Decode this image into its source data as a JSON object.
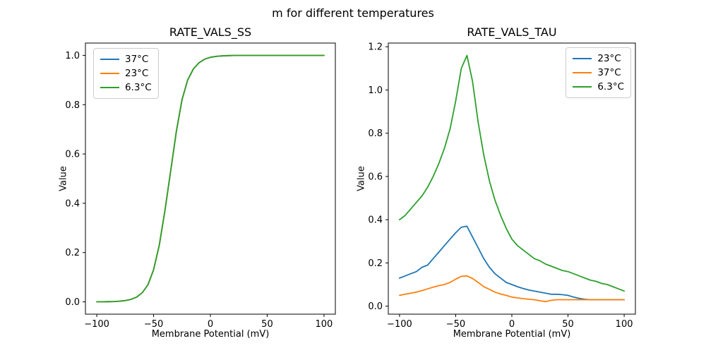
{
  "suptitle": "m for different temperatures",
  "chart_data": [
    {
      "type": "line",
      "title": "RATE_VALS_SS",
      "xlabel": "Membrane Potential (mV)",
      "ylabel": "Value",
      "xlim": [
        -110,
        110
      ],
      "ylim": [
        -0.05,
        1.05
      ],
      "xticks": [
        -100,
        -50,
        0,
        50,
        100
      ],
      "xticklabels": [
        "−100",
        "−50",
        "0",
        "50",
        "100"
      ],
      "yticks": [
        0,
        0.2,
        0.4,
        0.6,
        0.8,
        1.0
      ],
      "yticklabels": [
        "0.0",
        "0.2",
        "0.4",
        "0.6",
        "0.8",
        "1.0"
      ],
      "legend_position": "upper left",
      "grid": false,
      "x": [
        -100,
        -95,
        -90,
        -85,
        -80,
        -75,
        -70,
        -65,
        -60,
        -55,
        -50,
        -45,
        -40,
        -35,
        -30,
        -25,
        -20,
        -15,
        -10,
        -5,
        0,
        5,
        10,
        15,
        20,
        25,
        30,
        35,
        40,
        45,
        50,
        55,
        60,
        65,
        70,
        75,
        80,
        85,
        90,
        95,
        100
      ],
      "series": [
        {
          "name": "37°C",
          "color": "#1f77b4",
          "values": [
            0.0002,
            0.0003,
            0.0007,
            0.0013,
            0.0026,
            0.005,
            0.01,
            0.019,
            0.037,
            0.069,
            0.13,
            0.23,
            0.37,
            0.53,
            0.69,
            0.82,
            0.9,
            0.945,
            0.97,
            0.985,
            0.992,
            0.996,
            0.998,
            0.999,
            0.9995,
            1.0,
            1.0,
            1.0,
            1.0,
            1.0,
            1.0,
            1.0,
            1.0,
            1.0,
            1.0,
            1.0,
            1.0,
            1.0,
            1.0,
            1.0,
            1.0
          ]
        },
        {
          "name": "23°C",
          "color": "#ff7f0e",
          "values": [
            0.0002,
            0.0003,
            0.0007,
            0.0013,
            0.0026,
            0.005,
            0.01,
            0.019,
            0.037,
            0.069,
            0.13,
            0.23,
            0.37,
            0.53,
            0.69,
            0.82,
            0.9,
            0.945,
            0.97,
            0.985,
            0.992,
            0.996,
            0.998,
            0.999,
            0.9995,
            1.0,
            1.0,
            1.0,
            1.0,
            1.0,
            1.0,
            1.0,
            1.0,
            1.0,
            1.0,
            1.0,
            1.0,
            1.0,
            1.0,
            1.0,
            1.0
          ]
        },
        {
          "name": "6.3°C",
          "color": "#2ca02c",
          "values": [
            0.0002,
            0.0003,
            0.0007,
            0.0013,
            0.0026,
            0.005,
            0.01,
            0.019,
            0.037,
            0.069,
            0.13,
            0.23,
            0.37,
            0.53,
            0.69,
            0.82,
            0.9,
            0.945,
            0.97,
            0.985,
            0.992,
            0.996,
            0.998,
            0.999,
            0.9995,
            1.0,
            1.0,
            1.0,
            1.0,
            1.0,
            1.0,
            1.0,
            1.0,
            1.0,
            1.0,
            1.0,
            1.0,
            1.0,
            1.0,
            1.0,
            1.0
          ]
        }
      ]
    },
    {
      "type": "line",
      "title": "RATE_VALS_TAU",
      "xlabel": "Membrane Potential (mV)",
      "ylabel": "Value",
      "xlim": [
        -110,
        110
      ],
      "ylim": [
        -0.037,
        1.217
      ],
      "xticks": [
        -100,
        -50,
        0,
        50,
        100
      ],
      "xticklabels": [
        "−100",
        "−50",
        "0",
        "50",
        "100"
      ],
      "yticks": [
        0,
        0.2,
        0.4,
        0.6,
        0.8,
        1.0,
        1.2
      ],
      "yticklabels": [
        "0.0",
        "0.2",
        "0.4",
        "0.6",
        "0.8",
        "1.0",
        "1.2"
      ],
      "legend_position": "upper right",
      "grid": false,
      "x": [
        -100,
        -95,
        -90,
        -85,
        -80,
        -75,
        -70,
        -65,
        -60,
        -55,
        -50,
        -45,
        -40,
        -35,
        -30,
        -25,
        -20,
        -15,
        -10,
        -5,
        0,
        5,
        10,
        15,
        20,
        25,
        30,
        35,
        40,
        45,
        50,
        55,
        60,
        65,
        70,
        75,
        80,
        85,
        90,
        95,
        100
      ],
      "series": [
        {
          "name": "23°C",
          "color": "#1f77b4",
          "values": [
            0.13,
            0.14,
            0.15,
            0.16,
            0.18,
            0.19,
            0.22,
            0.25,
            0.28,
            0.31,
            0.34,
            0.365,
            0.37,
            0.32,
            0.27,
            0.22,
            0.18,
            0.15,
            0.13,
            0.11,
            0.1,
            0.09,
            0.082,
            0.075,
            0.07,
            0.065,
            0.06,
            0.055,
            0.055,
            0.053,
            0.05,
            0.042,
            0.036,
            0.032,
            0.03,
            0.03,
            0.03,
            0.03,
            0.03,
            0.03,
            0.03
          ]
        },
        {
          "name": "37°C",
          "color": "#ff7f0e",
          "values": [
            0.05,
            0.055,
            0.06,
            0.065,
            0.072,
            0.08,
            0.088,
            0.095,
            0.1,
            0.11,
            0.125,
            0.138,
            0.14,
            0.128,
            0.11,
            0.09,
            0.078,
            0.065,
            0.056,
            0.05,
            0.042,
            0.038,
            0.035,
            0.032,
            0.03,
            0.025,
            0.021,
            0.027,
            0.03,
            0.03,
            0.03,
            0.03,
            0.03,
            0.03,
            0.03,
            0.03,
            0.03,
            0.03,
            0.03,
            0.03,
            0.03
          ]
        },
        {
          "name": "6.3°C",
          "color": "#2ca02c",
          "values": [
            0.4,
            0.42,
            0.45,
            0.48,
            0.51,
            0.55,
            0.6,
            0.66,
            0.73,
            0.82,
            0.95,
            1.1,
            1.16,
            1.04,
            0.85,
            0.7,
            0.58,
            0.49,
            0.42,
            0.36,
            0.31,
            0.28,
            0.26,
            0.24,
            0.22,
            0.21,
            0.195,
            0.185,
            0.175,
            0.165,
            0.16,
            0.15,
            0.14,
            0.13,
            0.12,
            0.115,
            0.105,
            0.1,
            0.09,
            0.08,
            0.07
          ]
        }
      ]
    }
  ]
}
